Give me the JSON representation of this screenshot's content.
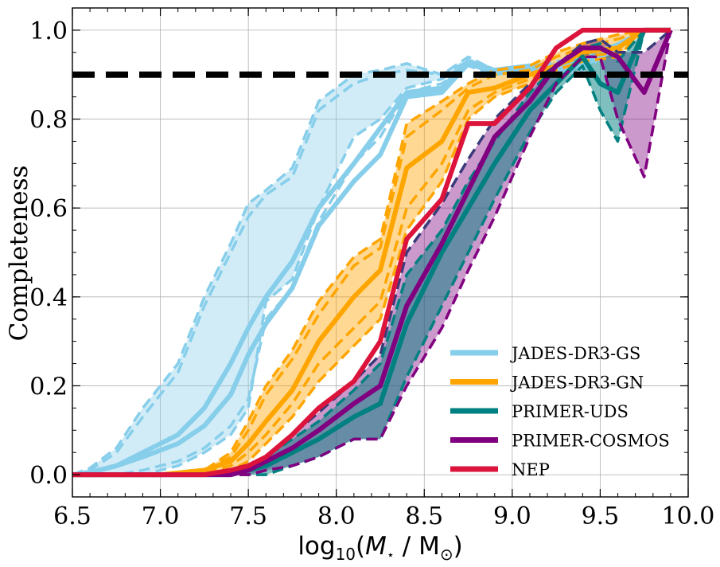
{
  "chart_data": {
    "type": "line",
    "title": "",
    "xlabel_parts": {
      "prefix": "log",
      "sub": "10",
      "open": "(",
      "mass_sym": "M",
      "star": "⋆",
      "slash": " / ",
      "msun": "M",
      "sun_sub": "⊙",
      "close": ")"
    },
    "ylabel": "Completeness",
    "xlim": [
      6.5,
      10.0
    ],
    "ylim": [
      -0.05,
      1.05
    ],
    "x_ticks": [
      6.5,
      7.0,
      7.5,
      8.0,
      8.5,
      9.0,
      9.5,
      10.0
    ],
    "x_tick_labels": [
      "6.5",
      "7.0",
      "7.5",
      "8.0",
      "8.5",
      "9.0",
      "9.5",
      "10.0"
    ],
    "y_ticks": [
      0.0,
      0.2,
      0.4,
      0.6,
      0.8,
      1.0
    ],
    "y_tick_labels": [
      "0.0",
      "0.2",
      "0.4",
      "0.6",
      "0.8",
      "1.0"
    ],
    "grid": true,
    "legend_position": "lower-right",
    "threshold": {
      "value": 0.9,
      "color": "#000000",
      "style": "dashed"
    },
    "series": [
      {
        "name": "JADES-DR3-GS",
        "color": "#87ceeb",
        "x": [
          6.5,
          6.6,
          6.75,
          6.9,
          7.1,
          7.25,
          7.4,
          7.5,
          7.6,
          7.75,
          7.9,
          8.1,
          8.25,
          8.4,
          8.6,
          8.75,
          8.9,
          9.1,
          9.25,
          9.4,
          9.6,
          9.75,
          9.9
        ],
        "upper_mid": [
          0.0,
          0.01,
          0.05,
          0.13,
          0.23,
          0.38,
          0.5,
          0.58,
          0.63,
          0.67,
          0.82,
          0.88,
          0.9,
          0.91,
          0.9,
          0.93,
          0.9,
          0.92,
          0.92,
          0.93,
          0.97,
          1.0,
          1.0
        ],
        "lower_mid": [
          0.0,
          0.0,
          0.0,
          0.01,
          0.03,
          0.06,
          0.11,
          0.17,
          0.35,
          0.42,
          0.57,
          0.7,
          0.76,
          0.86,
          0.88,
          0.92,
          0.9,
          0.91,
          0.9,
          0.92,
          0.96,
          1.0,
          1.0
        ],
        "upper_outer": [
          0.0,
          0.015,
          0.06,
          0.15,
          0.25,
          0.4,
          0.52,
          0.61,
          0.64,
          0.69,
          0.84,
          0.9,
          0.91,
          0.925,
          0.9,
          0.94,
          0.91,
          0.92,
          0.93,
          0.94,
          0.97,
          1.0,
          1.0
        ],
        "lower_outer": [
          0.0,
          0.0,
          0.0,
          0.0,
          0.02,
          0.05,
          0.09,
          0.15,
          0.39,
          0.44,
          0.6,
          0.76,
          0.8,
          0.87,
          0.89,
          0.925,
          0.9,
          0.91,
          0.9,
          0.91,
          0.96,
          1.0,
          1.0
        ],
        "upper_center": [
          0.0,
          0.005,
          0.02,
          0.05,
          0.09,
          0.15,
          0.25,
          0.33,
          0.4,
          0.48,
          0.6,
          0.7,
          0.78,
          0.86,
          0.87,
          0.93,
          0.91,
          0.92,
          0.92,
          0.93,
          0.96,
          1.0,
          1.0
        ],
        "lower_center": [
          0.0,
          0.005,
          0.02,
          0.04,
          0.07,
          0.11,
          0.18,
          0.27,
          0.34,
          0.42,
          0.56,
          0.66,
          0.72,
          0.85,
          0.86,
          0.925,
          0.905,
          0.915,
          0.91,
          0.92,
          0.96,
          1.0,
          1.0
        ]
      },
      {
        "name": "JADES-DR3-GN",
        "color": "#ffa500",
        "x": [
          6.5,
          6.75,
          7.0,
          7.25,
          7.4,
          7.5,
          7.6,
          7.75,
          7.9,
          8.1,
          8.25,
          8.4,
          8.6,
          8.75,
          8.9,
          9.1,
          9.25,
          9.4,
          9.6,
          9.75,
          9.9
        ],
        "upper_outer": [
          0.0,
          0.0,
          0.0,
          0.01,
          0.05,
          0.12,
          0.2,
          0.28,
          0.39,
          0.49,
          0.53,
          0.79,
          0.84,
          0.88,
          0.91,
          0.92,
          0.95,
          0.97,
          0.99,
          1.0,
          1.0
        ],
        "upper_mid": [
          0.0,
          0.0,
          0.0,
          0.01,
          0.04,
          0.1,
          0.18,
          0.26,
          0.36,
          0.47,
          0.51,
          0.76,
          0.82,
          0.87,
          0.9,
          0.91,
          0.94,
          0.96,
          0.98,
          1.0,
          1.0
        ],
        "center": [
          0.0,
          0.0,
          0.0,
          0.01,
          0.03,
          0.07,
          0.12,
          0.19,
          0.3,
          0.4,
          0.46,
          0.69,
          0.75,
          0.86,
          0.87,
          0.9,
          0.92,
          0.95,
          0.96,
          1.0,
          1.0
        ],
        "lower_mid": [
          0.0,
          0.0,
          0.0,
          0.005,
          0.02,
          0.05,
          0.09,
          0.16,
          0.25,
          0.33,
          0.39,
          0.6,
          0.7,
          0.82,
          0.86,
          0.89,
          0.92,
          0.94,
          0.95,
          1.0,
          1.0
        ],
        "lower_outer": [
          0.0,
          0.0,
          0.0,
          0.0,
          0.01,
          0.03,
          0.07,
          0.13,
          0.21,
          0.29,
          0.35,
          0.55,
          0.66,
          0.8,
          0.85,
          0.88,
          0.91,
          0.93,
          0.94,
          1.0,
          1.0
        ]
      },
      {
        "name": "PRIMER-UDS",
        "color": "#008080",
        "x": [
          6.5,
          7.0,
          7.25,
          7.4,
          7.5,
          7.6,
          7.75,
          7.9,
          8.1,
          8.25,
          8.4,
          8.6,
          8.75,
          8.9,
          9.1,
          9.25,
          9.4,
          9.5,
          9.6,
          9.75,
          9.9
        ],
        "upper": [
          0.0,
          0.0,
          0.0,
          0.01,
          0.02,
          0.04,
          0.08,
          0.12,
          0.19,
          0.25,
          0.45,
          0.55,
          0.66,
          0.75,
          0.86,
          0.92,
          0.96,
          0.97,
          0.93,
          1.0,
          1.0
        ],
        "center": [
          0.0,
          0.0,
          0.0,
          0.0,
          0.01,
          0.02,
          0.05,
          0.08,
          0.13,
          0.16,
          0.34,
          0.5,
          0.6,
          0.7,
          0.82,
          0.88,
          0.94,
          0.88,
          0.86,
          1.0,
          1.0
        ],
        "lower": [
          0.0,
          0.0,
          0.0,
          0.0,
          0.0,
          0.0,
          0.02,
          0.04,
          0.08,
          0.08,
          0.22,
          0.38,
          0.5,
          0.62,
          0.77,
          0.86,
          0.92,
          0.82,
          0.75,
          1.0,
          1.0
        ]
      },
      {
        "name": "PRIMER-COSMOS",
        "color": "#800080",
        "x": [
          6.5,
          7.0,
          7.25,
          7.4,
          7.5,
          7.6,
          7.75,
          7.9,
          8.1,
          8.25,
          8.4,
          8.6,
          8.75,
          8.9,
          9.1,
          9.25,
          9.4,
          9.5,
          9.6,
          9.75,
          9.9
        ],
        "upper": [
          0.0,
          0.0,
          0.0,
          0.01,
          0.02,
          0.04,
          0.09,
          0.14,
          0.21,
          0.27,
          0.5,
          0.61,
          0.71,
          0.8,
          0.88,
          0.92,
          0.97,
          0.98,
          0.95,
          0.95,
          1.0
        ],
        "center": [
          0.0,
          0.0,
          0.0,
          0.0,
          0.01,
          0.03,
          0.06,
          0.1,
          0.16,
          0.2,
          0.38,
          0.52,
          0.64,
          0.76,
          0.84,
          0.92,
          0.96,
          0.96,
          0.94,
          0.86,
          1.0
        ],
        "lower": [
          0.0,
          0.0,
          0.0,
          0.0,
          0.0,
          0.01,
          0.02,
          0.04,
          0.08,
          0.08,
          0.2,
          0.33,
          0.46,
          0.58,
          0.76,
          0.88,
          0.94,
          0.94,
          0.8,
          0.67,
          1.0
        ]
      },
      {
        "name": "NEP",
        "color": "#dc143c",
        "x": [
          6.5,
          7.0,
          7.25,
          7.4,
          7.5,
          7.6,
          7.75,
          7.9,
          8.1,
          8.25,
          8.4,
          8.6,
          8.75,
          8.9,
          9.1,
          9.25,
          9.4,
          9.6,
          9.75,
          9.9
        ],
        "center": [
          0.0,
          0.0,
          0.0,
          0.01,
          0.02,
          0.04,
          0.09,
          0.15,
          0.21,
          0.3,
          0.53,
          0.62,
          0.79,
          0.79,
          0.87,
          0.96,
          1.0,
          1.0,
          1.0,
          1.0
        ]
      }
    ]
  }
}
